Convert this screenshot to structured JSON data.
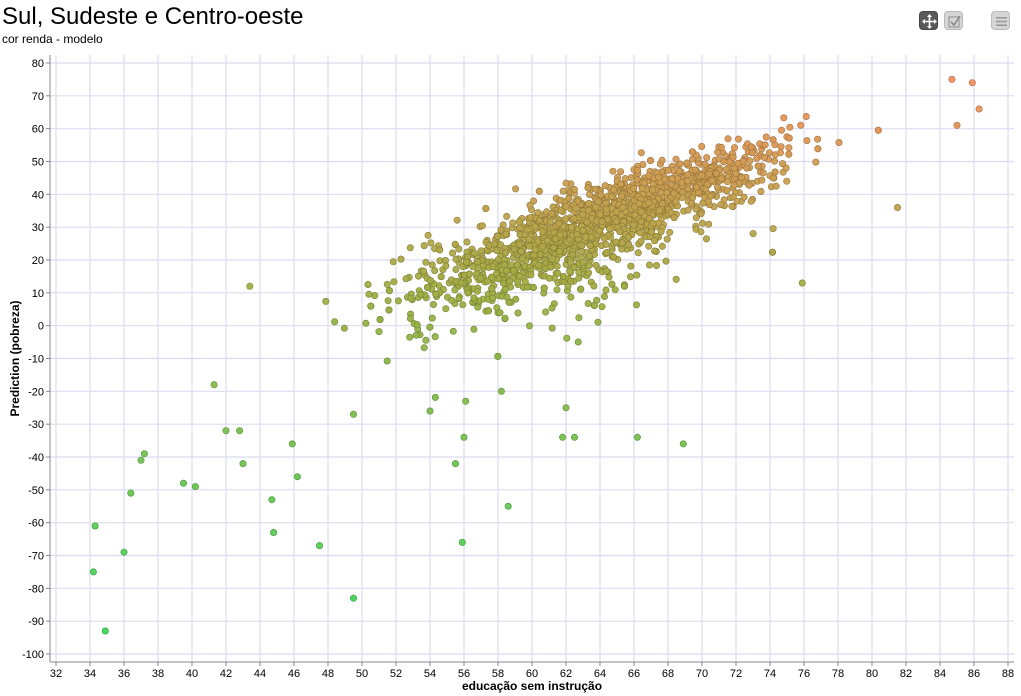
{
  "header": {
    "title": "Sul, Sudeste e Centro-oeste",
    "subtitle": "cor renda - modelo"
  },
  "toolbar": {
    "icons": [
      "pan-icon",
      "box-select-icon",
      "menu-icon"
    ]
  },
  "colors": {
    "low": "#3fd65a",
    "mid": "#9fae44",
    "high": "#f0905c",
    "grid": "#dcdcf0"
  },
  "chart_data": {
    "type": "scatter",
    "title": "Sul, Sudeste e Centro-oeste",
    "subtitle": "cor renda - modelo",
    "xlabel": "educação sem instrução",
    "ylabel": "Prediction (pobreza)",
    "xlim": [
      32,
      88
    ],
    "ylim": [
      -100,
      80
    ],
    "xticks": [
      32,
      34,
      36,
      38,
      40,
      42,
      44,
      46,
      48,
      50,
      52,
      54,
      56,
      58,
      60,
      62,
      64,
      66,
      68,
      70,
      72,
      74,
      76,
      78,
      80,
      82,
      84,
      86,
      88
    ],
    "yticks": [
      -100,
      -90,
      -80,
      -70,
      -60,
      -50,
      -40,
      -30,
      -20,
      -10,
      0,
      10,
      20,
      30,
      40,
      50,
      60,
      70,
      80
    ],
    "grid": true,
    "color_encoding": "prediction",
    "approx_point_count": 1800,
    "highlighted_points": [
      {
        "x": 34.2,
        "y": -75
      },
      {
        "x": 34.3,
        "y": -61
      },
      {
        "x": 34.9,
        "y": -93
      },
      {
        "x": 36.0,
        "y": -69
      },
      {
        "x": 36.4,
        "y": -51
      },
      {
        "x": 37.0,
        "y": -41
      },
      {
        "x": 37.2,
        "y": -39
      },
      {
        "x": 39.5,
        "y": -48
      },
      {
        "x": 40.2,
        "y": -49
      },
      {
        "x": 41.3,
        "y": -18
      },
      {
        "x": 42.0,
        "y": -32
      },
      {
        "x": 42.8,
        "y": -32
      },
      {
        "x": 43.0,
        "y": -42
      },
      {
        "x": 43.4,
        "y": 12
      },
      {
        "x": 44.7,
        "y": -53
      },
      {
        "x": 44.8,
        "y": -63
      },
      {
        "x": 45.9,
        "y": -36
      },
      {
        "x": 46.2,
        "y": -46
      },
      {
        "x": 47.5,
        "y": -67
      },
      {
        "x": 49.5,
        "y": -83
      },
      {
        "x": 49.5,
        "y": -27
      },
      {
        "x": 54.0,
        "y": -26
      },
      {
        "x": 55.5,
        "y": -42
      },
      {
        "x": 55.9,
        "y": -66
      },
      {
        "x": 56.0,
        "y": -34
      },
      {
        "x": 56.1,
        "y": -23
      },
      {
        "x": 58.6,
        "y": -55
      },
      {
        "x": 58.2,
        "y": -20
      },
      {
        "x": 61.8,
        "y": -34
      },
      {
        "x": 62.0,
        "y": -25
      },
      {
        "x": 62.5,
        "y": -34
      },
      {
        "x": 66.2,
        "y": -34
      },
      {
        "x": 68.9,
        "y": -36
      },
      {
        "x": 75.9,
        "y": 13
      },
      {
        "x": 81.5,
        "y": 36
      },
      {
        "x": 84.7,
        "y": 75
      },
      {
        "x": 85.9,
        "y": 74
      },
      {
        "x": 86.3,
        "y": 66
      },
      {
        "x": 85.0,
        "y": 61
      }
    ]
  }
}
